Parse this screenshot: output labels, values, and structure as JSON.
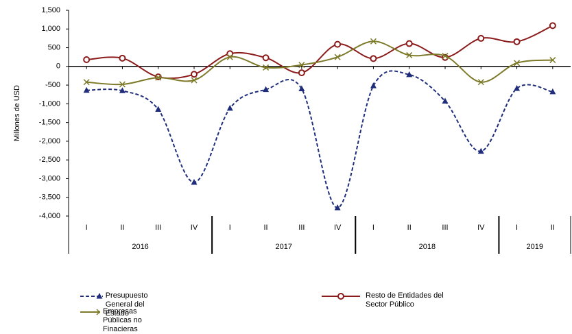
{
  "chart_data": {
    "type": "line",
    "ylabel": "Millones de USD",
    "groups": [
      {
        "label": "2016",
        "categories": [
          "I",
          "II",
          "III",
          "IV"
        ]
      },
      {
        "label": "2017",
        "categories": [
          "I",
          "II",
          "III",
          "IV"
        ]
      },
      {
        "label": "2018",
        "categories": [
          "I",
          "II",
          "III",
          "IV"
        ]
      },
      {
        "label": "2019",
        "categories": [
          "I",
          "II"
        ]
      }
    ],
    "series": [
      {
        "name": "Presupuesto General del Estado",
        "color": "#1f2d7a",
        "marker": "triangle",
        "dashed": true,
        "values": [
          -640,
          -650,
          -1150,
          -3100,
          -1120,
          -620,
          -600,
          -3780,
          -520,
          -220,
          -930,
          -2270,
          -590,
          -680
        ]
      },
      {
        "name": "Resto de Entidades del Sector Público",
        "color": "#8b1a1a",
        "marker": "circle",
        "dashed": false,
        "values": [
          180,
          220,
          -280,
          -210,
          340,
          230,
          -170,
          590,
          210,
          610,
          240,
          750,
          660,
          1090
        ]
      },
      {
        "name": "Empresas Públicas no Finacieras",
        "color": "#7d7a2a",
        "marker": "x",
        "dashed": false,
        "values": [
          -420,
          -480,
          -300,
          -370,
          250,
          -30,
          40,
          250,
          670,
          300,
          280,
          -420,
          90,
          170
        ]
      }
    ],
    "ylim": [
      -4000,
      1500
    ],
    "yticks": [
      {
        "value": 1500,
        "label": "1,500"
      },
      {
        "value": 1000,
        "label": "1,000"
      },
      500,
      0,
      -500,
      {
        "value": -1000,
        "label": "-1,000"
      },
      {
        "value": -1500,
        "label": "-1,500"
      },
      {
        "value": -2000,
        "label": "-2,000"
      },
      {
        "value": -2500,
        "label": "-2,500"
      },
      {
        "value": -3000,
        "label": "-3,000"
      },
      {
        "value": -3500,
        "label": "-3,500"
      },
      {
        "value": -4000,
        "label": "-4,000"
      }
    ]
  }
}
